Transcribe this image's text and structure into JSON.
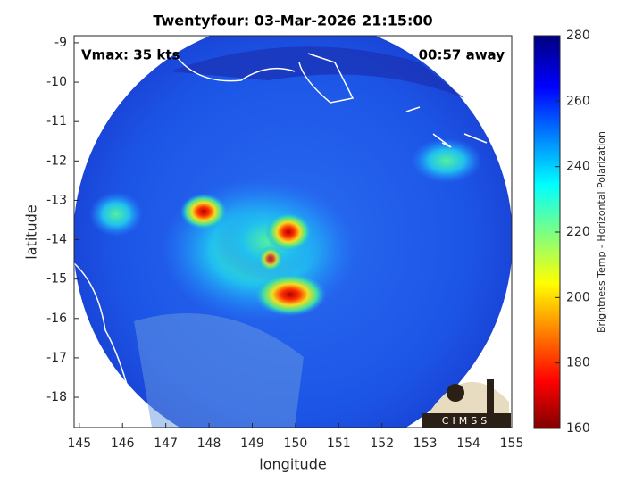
{
  "chart_data": {
    "type": "map",
    "title": "Twentyfour: 03-Mar-2026 21:15:00",
    "annotations": [
      "Vmax: 35 kts",
      "00:57 away"
    ],
    "xlabel": "longitude",
    "ylabel": "latitude",
    "xlim": [
      144.88,
      155
    ],
    "xticks": [
      145,
      146,
      147,
      148,
      149,
      150,
      151,
      152,
      153,
      154,
      155
    ],
    "ylim": [
      -18.77,
      -8.82
    ],
    "yticks": [
      -9,
      -10,
      -11,
      -12,
      -13,
      -14,
      -15,
      -16,
      -17,
      -18
    ],
    "colorbar": {
      "label": "Brightness Temp - Horizontal Polarization",
      "lim": [
        160,
        280
      ],
      "ticks": [
        160,
        180,
        200,
        220,
        240,
        260,
        280
      ]
    },
    "logo": "CIMSS"
  }
}
